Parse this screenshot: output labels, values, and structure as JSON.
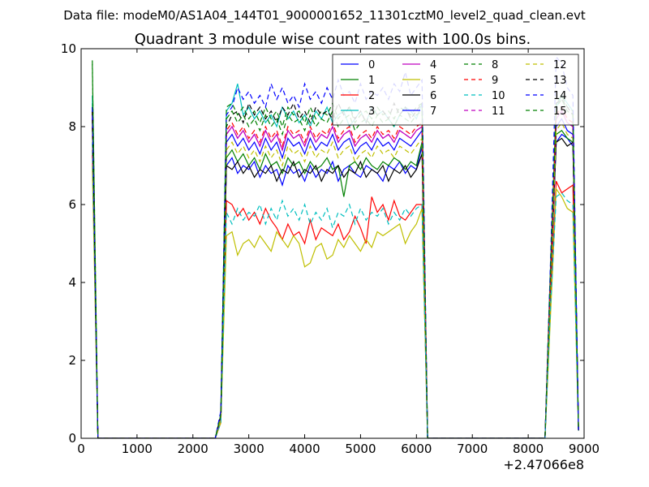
{
  "header": {
    "data_file": "Data file: modeM0/AS1A04_144T01_9000001652_11301cztM0_level2_quad_clean.evt"
  },
  "chart_data": {
    "type": "line",
    "title": "Quadrant 3 module wise count rates with 100.0s bins.",
    "xlabel": "",
    "ylabel": "",
    "x_offset_label": "+2.47066e8",
    "xlim": [
      0,
      9000
    ],
    "ylim": [
      0,
      10
    ],
    "xticks": [
      0,
      1000,
      2000,
      3000,
      4000,
      5000,
      6000,
      7000,
      8000,
      9000
    ],
    "xtick_labels": [
      "0",
      "1000",
      "2000",
      "3000",
      "4000",
      "5000",
      "6000",
      "7000",
      "8000",
      "9000"
    ],
    "yticks": [
      0,
      2,
      4,
      6,
      8,
      10
    ],
    "ytick_labels": [
      "0",
      "2",
      "4",
      "6",
      "8",
      "10"
    ],
    "grid": false,
    "legend_position": "top-right",
    "x": [
      200,
      300,
      2400,
      2500,
      2600,
      2700,
      2800,
      2900,
      3000,
      3100,
      3200,
      3300,
      3400,
      3500,
      3600,
      3700,
      3800,
      3900,
      4000,
      4100,
      4200,
      4300,
      4400,
      4500,
      4600,
      4700,
      4800,
      4900,
      5000,
      5100,
      5200,
      5300,
      5400,
      5500,
      5600,
      5700,
      5800,
      5900,
      6000,
      6100,
      6200,
      6300,
      8300,
      8400,
      8500,
      8600,
      8700,
      8800,
      8900
    ],
    "series": [
      {
        "name": "0",
        "color": "#0000ff",
        "dash": "solid",
        "values": [
          8.5,
          0,
          0,
          0.5,
          7.0,
          7.2,
          6.8,
          7.0,
          6.9,
          7.1,
          6.7,
          7.0,
          6.8,
          6.9,
          6.5,
          7.0,
          6.8,
          6.9,
          6.6,
          7.0,
          6.7,
          6.9,
          6.8,
          7.1,
          6.6,
          6.9,
          7.0,
          6.8,
          6.7,
          7.0,
          6.9,
          6.8,
          6.6,
          7.0,
          6.9,
          7.1,
          6.8,
          7.0,
          6.9,
          7.5,
          0,
          0,
          0,
          4.0,
          7.6,
          7.8,
          7.7,
          7.5,
          0.2
        ]
      },
      {
        "name": "1",
        "color": "#008000",
        "dash": "solid",
        "values": [
          8.6,
          0,
          0,
          0.5,
          7.2,
          7.4,
          7.1,
          7.3,
          7.0,
          7.2,
          6.9,
          7.3,
          7.0,
          7.1,
          6.8,
          7.2,
          7.0,
          7.1,
          6.8,
          7.1,
          6.9,
          7.0,
          7.2,
          6.9,
          7.0,
          6.2,
          7.0,
          7.1,
          6.9,
          7.2,
          7.0,
          6.9,
          7.1,
          7.0,
          7.2,
          7.1,
          6.9,
          7.1,
          7.0,
          7.6,
          0,
          0,
          0,
          4.0,
          7.8,
          7.9,
          7.7,
          7.6,
          0.2
        ]
      },
      {
        "name": "2",
        "color": "#ff0000",
        "dash": "solid",
        "values": [
          7.4,
          0,
          0,
          0.4,
          6.1,
          6.0,
          5.7,
          5.9,
          5.6,
          5.8,
          5.5,
          5.9,
          5.6,
          5.4,
          5.1,
          5.5,
          5.2,
          5.3,
          5.0,
          5.6,
          5.1,
          5.4,
          5.3,
          5.2,
          5.5,
          5.1,
          5.3,
          5.7,
          5.4,
          5.0,
          6.2,
          5.8,
          6.0,
          5.6,
          6.1,
          5.7,
          5.6,
          5.8,
          6.0,
          6.0,
          0,
          0,
          0,
          3.5,
          6.6,
          6.3,
          6.4,
          6.5,
          0.2
        ]
      },
      {
        "name": "3",
        "color": "#00bfbf",
        "dash": "solid",
        "values": [
          8.8,
          0,
          0,
          0.6,
          8.4,
          8.6,
          9.1,
          8.3,
          8.5,
          8.2,
          8.4,
          8.1,
          8.3,
          8.0,
          8.5,
          8.2,
          8.4,
          8.1,
          8.3,
          8.0,
          8.4,
          8.2,
          8.5,
          8.1,
          8.3,
          8.4,
          8.0,
          8.2,
          8.4,
          8.1,
          8.5,
          8.3,
          8.4,
          8.2,
          8.0,
          8.3,
          8.5,
          8.4,
          8.2,
          8.6,
          0,
          0,
          0,
          4.5,
          8.5,
          8.8,
          8.6,
          8.4,
          0.2
        ]
      },
      {
        "name": "4",
        "color": "#bf00bf",
        "dash": "solid",
        "values": [
          8.3,
          0,
          0,
          0.5,
          7.8,
          8.0,
          7.7,
          7.9,
          7.6,
          7.8,
          7.5,
          7.9,
          7.6,
          7.8,
          7.4,
          7.9,
          7.7,
          7.8,
          7.5,
          7.9,
          7.6,
          7.8,
          7.7,
          8.0,
          7.6,
          7.8,
          7.9,
          7.5,
          7.7,
          7.8,
          7.6,
          7.9,
          7.7,
          7.8,
          7.6,
          7.9,
          7.8,
          7.7,
          7.9,
          8.0,
          0,
          0,
          0,
          4.2,
          8.2,
          8.4,
          8.1,
          8.0,
          0.2
        ]
      },
      {
        "name": "5",
        "color": "#bfbf00",
        "dash": "solid",
        "values": [
          7.0,
          0,
          0,
          0.4,
          5.2,
          5.3,
          4.7,
          5.0,
          5.1,
          4.9,
          5.2,
          5.0,
          4.8,
          5.3,
          5.1,
          4.9,
          5.2,
          5.0,
          4.4,
          4.5,
          4.9,
          5.0,
          4.6,
          4.7,
          5.1,
          4.9,
          5.2,
          5.0,
          4.8,
          5.1,
          4.9,
          5.3,
          5.2,
          5.3,
          5.4,
          5.5,
          5.0,
          5.3,
          5.5,
          5.9,
          0,
          0,
          0,
          3.2,
          6.4,
          6.2,
          5.9,
          5.8,
          0.2
        ]
      },
      {
        "name": "6",
        "color": "#000000",
        "dash": "solid",
        "values": [
          8.0,
          0,
          0,
          0.5,
          7.0,
          6.9,
          7.1,
          6.8,
          7.0,
          6.7,
          6.9,
          6.8,
          7.0,
          6.6,
          6.9,
          6.8,
          7.1,
          6.7,
          6.9,
          6.8,
          7.0,
          6.6,
          6.9,
          6.8,
          7.0,
          6.7,
          6.9,
          6.8,
          7.1,
          6.7,
          6.9,
          6.8,
          7.0,
          6.6,
          6.9,
          6.8,
          7.0,
          6.7,
          6.9,
          7.3,
          0,
          0,
          0,
          4.0,
          7.6,
          7.7,
          7.5,
          7.6,
          0.2
        ]
      },
      {
        "name": "7",
        "color": "#0000ff",
        "dash": "solid",
        "values": [
          8.2,
          0,
          0,
          0.5,
          7.6,
          7.8,
          7.5,
          7.7,
          7.4,
          7.6,
          7.3,
          7.7,
          7.4,
          7.6,
          7.2,
          7.7,
          7.5,
          7.6,
          7.3,
          7.7,
          7.4,
          7.6,
          7.5,
          7.8,
          7.4,
          7.6,
          7.7,
          7.3,
          7.5,
          7.6,
          7.4,
          7.7,
          7.5,
          7.6,
          7.4,
          7.7,
          7.6,
          7.5,
          7.7,
          7.9,
          0,
          0,
          0,
          4.1,
          8.0,
          8.2,
          7.9,
          7.8,
          0.2
        ]
      },
      {
        "name": "8",
        "color": "#008000",
        "dash": "dash",
        "values": [
          9.7,
          0,
          0,
          0.6,
          8.5,
          8.6,
          8.3,
          8.5,
          8.2,
          8.4,
          8.1,
          8.5,
          8.2,
          8.4,
          8.0,
          8.5,
          8.3,
          8.4,
          8.1,
          8.5,
          8.2,
          8.4,
          8.3,
          8.6,
          8.2,
          8.4,
          8.5,
          8.1,
          8.3,
          8.4,
          8.2,
          8.5,
          8.3,
          8.4,
          8.2,
          8.5,
          8.4,
          8.3,
          8.5,
          8.6,
          0,
          0,
          0,
          4.4,
          8.6,
          8.8,
          8.5,
          8.4,
          0.2
        ]
      },
      {
        "name": "9",
        "color": "#ff0000",
        "dash": "dash",
        "values": [
          8.4,
          0,
          0,
          0.5,
          7.9,
          8.1,
          7.8,
          8.0,
          7.7,
          7.9,
          7.6,
          8.0,
          7.7,
          7.9,
          7.5,
          8.0,
          7.8,
          7.9,
          7.6,
          8.0,
          7.7,
          7.9,
          7.8,
          8.1,
          7.7,
          7.9,
          8.0,
          7.6,
          7.8,
          7.9,
          7.7,
          8.0,
          7.8,
          7.9,
          7.7,
          8.0,
          7.9,
          7.8,
          8.0,
          8.1,
          0,
          0,
          0,
          4.2,
          8.3,
          8.5,
          8.2,
          8.1,
          0.2
        ]
      },
      {
        "name": "10",
        "color": "#00bfbf",
        "dash": "dash",
        "values": [
          7.6,
          0,
          0,
          0.4,
          5.8,
          5.5,
          5.9,
          5.6,
          5.8,
          5.7,
          6.0,
          5.5,
          5.9,
          5.6,
          6.1,
          5.7,
          5.9,
          5.6,
          6.0,
          5.5,
          5.8,
          5.6,
          5.9,
          5.4,
          5.8,
          5.7,
          6.0,
          5.5,
          5.9,
          5.6,
          5.8,
          5.7,
          5.9,
          5.5,
          5.8,
          5.6,
          5.9,
          5.7,
          5.9,
          6.0,
          0,
          0,
          0,
          3.4,
          6.2,
          6.3,
          6.1,
          6.0,
          0.2
        ]
      },
      {
        "name": "11",
        "color": "#bf00bf",
        "dash": "dash",
        "values": [
          8.3,
          0,
          0,
          0.5,
          7.8,
          8.0,
          7.7,
          7.9,
          7.6,
          7.8,
          7.5,
          7.9,
          7.6,
          7.8,
          7.4,
          7.9,
          7.7,
          7.8,
          7.5,
          7.9,
          7.6,
          7.8,
          7.7,
          8.0,
          7.6,
          7.8,
          7.9,
          7.5,
          7.7,
          7.8,
          7.6,
          7.9,
          7.7,
          7.8,
          7.6,
          7.9,
          7.8,
          7.7,
          7.9,
          8.0,
          0,
          0,
          0,
          4.2,
          8.2,
          8.4,
          8.1,
          8.0,
          0.2
        ]
      },
      {
        "name": "12",
        "color": "#bfbf00",
        "dash": "dash",
        "values": [
          8.1,
          0,
          0,
          0.5,
          7.4,
          7.6,
          7.3,
          7.5,
          7.2,
          7.4,
          7.1,
          7.5,
          7.2,
          7.4,
          7.0,
          7.5,
          7.3,
          7.4,
          7.1,
          7.5,
          7.2,
          7.4,
          7.3,
          7.6,
          7.2,
          7.4,
          7.5,
          7.1,
          7.3,
          7.4,
          7.2,
          7.5,
          7.3,
          7.4,
          7.2,
          7.5,
          7.4,
          7.3,
          7.5,
          7.7,
          0,
          0,
          0,
          4.0,
          7.9,
          8.1,
          7.8,
          7.7,
          0.2
        ]
      },
      {
        "name": "13",
        "color": "#000000",
        "dash": "dash",
        "values": [
          8.4,
          0,
          0,
          0.6,
          8.0,
          8.3,
          8.4,
          8.1,
          8.6,
          8.3,
          8.5,
          8.2,
          8.4,
          8.1,
          8.5,
          8.3,
          8.6,
          8.2,
          8.4,
          8.1,
          8.5,
          8.3,
          8.4,
          8.2,
          8.6,
          8.3,
          8.5,
          8.2,
          8.4,
          8.1,
          8.5,
          8.3,
          8.4,
          8.2,
          8.6,
          8.3,
          8.5,
          8.2,
          8.4,
          8.6,
          0,
          0,
          0,
          4.4,
          8.6,
          8.7,
          8.5,
          8.3,
          0.2
        ]
      },
      {
        "name": "14",
        "color": "#0000ff",
        "dash": "dash",
        "values": [
          8.5,
          0,
          0,
          0.7,
          8.3,
          8.5,
          9.0,
          8.7,
          8.9,
          8.6,
          8.8,
          8.5,
          9.1,
          8.7,
          9.0,
          8.6,
          8.8,
          8.5,
          9.1,
          8.7,
          8.9,
          8.6,
          9.0,
          8.7,
          9.2,
          8.8,
          8.9,
          8.6,
          9.1,
          8.7,
          8.9,
          8.8,
          9.0,
          8.7,
          9.1,
          8.9,
          9.4,
          8.8,
          9.0,
          9.2,
          0,
          0,
          0,
          4.6,
          9.8,
          9.6,
          9.0,
          8.8,
          0.2
        ]
      },
      {
        "name": "15",
        "color": "#008000",
        "dash": "dash",
        "values": [
          9.6,
          0,
          0,
          0.6,
          8.2,
          8.4,
          8.1,
          8.3,
          8.0,
          8.2,
          7.9,
          8.3,
          8.0,
          8.2,
          7.8,
          8.3,
          8.1,
          8.2,
          7.9,
          8.3,
          8.0,
          8.2,
          8.1,
          8.4,
          8.0,
          8.2,
          8.3,
          7.9,
          8.1,
          8.2,
          8.0,
          8.3,
          8.1,
          8.2,
          8.0,
          8.3,
          8.2,
          8.1,
          8.3,
          8.4,
          0,
          0,
          0,
          4.3,
          8.5,
          8.7,
          8.4,
          8.3,
          0.2
        ]
      }
    ]
  }
}
